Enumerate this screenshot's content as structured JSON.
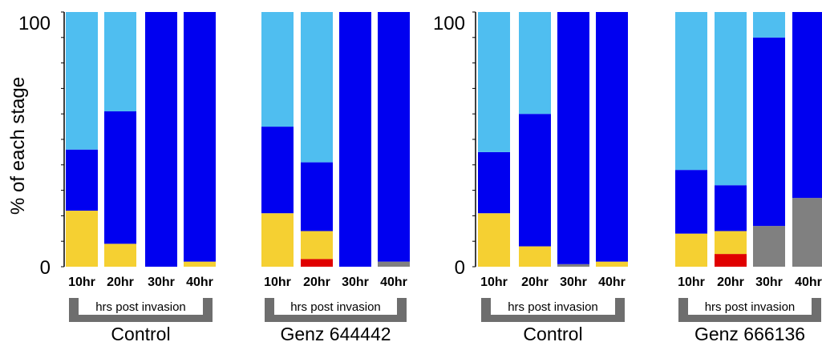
{
  "chart_data": [
    {
      "type": "bar",
      "stacked": true,
      "ylabel": "% of each stage",
      "ylim": [
        0,
        100
      ],
      "yticks": [
        "0",
        "100"
      ],
      "categories": [
        "10hr",
        "20hr",
        "30hr",
        "40hr",
        "10hr",
        "20hr",
        "30hr",
        "40hr"
      ],
      "groups": [
        {
          "name": "Control",
          "bracket_label": "hrs post invasion"
        },
        {
          "name": "Genz 644442",
          "bracket_label": "hrs post invasion"
        }
      ],
      "series": [
        {
          "color": "#808080",
          "values": [
            0,
            0,
            0,
            0,
            0,
            0,
            0,
            2
          ]
        },
        {
          "color": "#e00000",
          "values": [
            0,
            0,
            0,
            0,
            0,
            3,
            0,
            0
          ]
        },
        {
          "color": "#f5d032",
          "values": [
            22,
            9,
            0,
            2,
            21,
            11,
            0,
            0
          ]
        },
        {
          "color": "#0000f0",
          "values": [
            24,
            52,
            100,
            98,
            34,
            27,
            100,
            98
          ]
        },
        {
          "color": "#4fbef0",
          "values": [
            54,
            39,
            0,
            0,
            45,
            59,
            0,
            0
          ]
        }
      ]
    },
    {
      "type": "bar",
      "stacked": true,
      "ylabel": "",
      "ylim": [
        0,
        100
      ],
      "yticks": [
        "0",
        "100"
      ],
      "categories": [
        "10hr",
        "20hr",
        "30hr",
        "40hr",
        "10hr",
        "20hr",
        "30hr",
        "40hr"
      ],
      "groups": [
        {
          "name": "Control",
          "bracket_label": "hrs post invasion"
        },
        {
          "name": "Genz 666136",
          "bracket_label": "hrs post invasion"
        }
      ],
      "series": [
        {
          "color": "#808080",
          "values": [
            0,
            0,
            1,
            0,
            0,
            0,
            16,
            27
          ]
        },
        {
          "color": "#e00000",
          "values": [
            0,
            0,
            0,
            0,
            0,
            5,
            0,
            0
          ]
        },
        {
          "color": "#f5d032",
          "values": [
            21,
            8,
            0,
            2,
            13,
            9,
            0,
            0
          ]
        },
        {
          "color": "#0000f0",
          "values": [
            24,
            52,
            99,
            98,
            25,
            18,
            74,
            73
          ]
        },
        {
          "color": "#4fbef0",
          "values": [
            55,
            40,
            0,
            0,
            62,
            68,
            10,
            0
          ]
        }
      ]
    }
  ]
}
